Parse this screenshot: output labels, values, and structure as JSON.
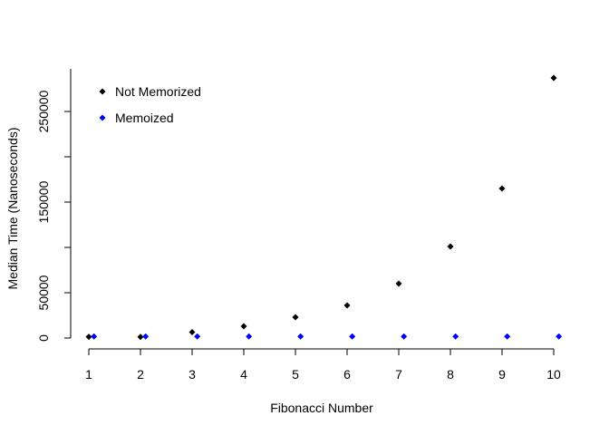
{
  "chart_data": {
    "type": "scatter",
    "title": "",
    "xlabel": "Fibonacci Number",
    "ylabel": "Median Time (Nanoseconds)",
    "xlim": [
      1,
      10
    ],
    "ylim": [
      0,
      290000
    ],
    "x_ticks": [
      1,
      2,
      3,
      4,
      5,
      6,
      7,
      8,
      9,
      10
    ],
    "y_ticks": [
      0,
      50000,
      150000,
      250000
    ],
    "grid": false,
    "legend_placement": "top-left",
    "x": [
      1,
      2,
      3,
      4,
      5,
      6,
      7,
      8,
      9,
      10
    ],
    "series": [
      {
        "name": "Not Memorized",
        "color": "#000000",
        "marker": "diamond",
        "x_offset": 0,
        "values": [
          1400,
          1300,
          6500,
          13000,
          23000,
          36000,
          60000,
          101000,
          165000,
          287000
        ]
      },
      {
        "name": "Memoized",
        "color": "#0000ff",
        "marker": "diamond",
        "x_offset": 0.1,
        "values": [
          1800,
          1800,
          1800,
          1800,
          1800,
          1800,
          1800,
          1800,
          1800,
          1800
        ]
      }
    ]
  }
}
